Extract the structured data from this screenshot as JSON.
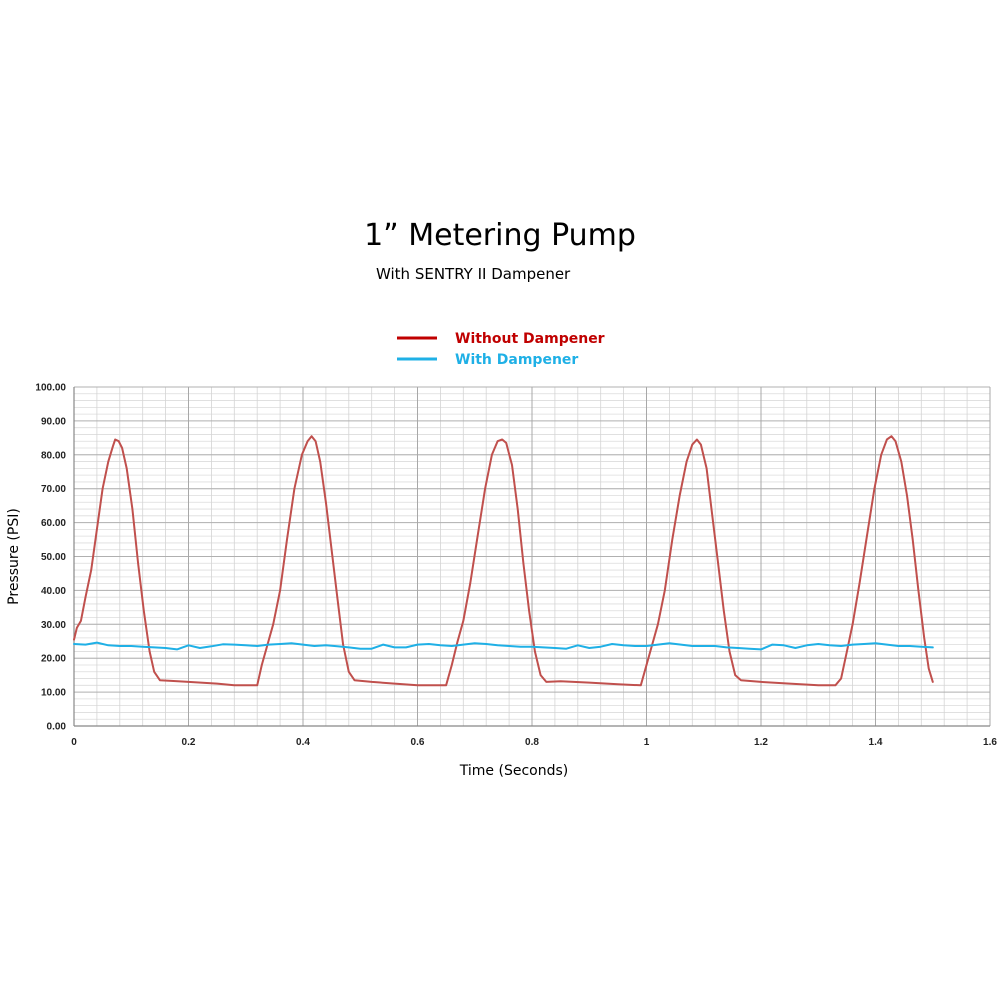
{
  "chart_data": {
    "type": "line",
    "title": "1” Metering Pump",
    "subtitle": "With SENTRY II Dampener",
    "xlabel": "Time (Seconds)",
    "ylabel": "Pressure (PSI)",
    "xlim": [
      0,
      1.6
    ],
    "ylim": [
      0,
      100
    ],
    "x_ticks": [
      "0",
      "0.2",
      "0.4",
      "0.6",
      "0.8",
      "1",
      "1.2",
      "1.4",
      "1.6"
    ],
    "y_ticks": [
      "0.00",
      "10.00",
      "20.00",
      "30.00",
      "40.00",
      "50.00",
      "60.00",
      "70.00",
      "80.00",
      "90.00",
      "100.00"
    ],
    "grid": true,
    "legend_position": "top-center",
    "series": [
      {
        "name": "Without Dampener",
        "color": "#c0504d",
        "legend_color": "#c00000",
        "points": [
          [
            0.0,
            25.5
          ],
          [
            0.005,
            29.0
          ],
          [
            0.012,
            31.0
          ],
          [
            0.02,
            38.0
          ],
          [
            0.03,
            46.0
          ],
          [
            0.04,
            58.0
          ],
          [
            0.05,
            70.0
          ],
          [
            0.06,
            78.0
          ],
          [
            0.068,
            82.5
          ],
          [
            0.072,
            84.5
          ],
          [
            0.078,
            84.0
          ],
          [
            0.084,
            82.0
          ],
          [
            0.092,
            76.0
          ],
          [
            0.102,
            64.0
          ],
          [
            0.112,
            48.0
          ],
          [
            0.122,
            34.0
          ],
          [
            0.132,
            22.0
          ],
          [
            0.14,
            16.0
          ],
          [
            0.15,
            13.5
          ],
          [
            0.17,
            13.3
          ],
          [
            0.2,
            13.0
          ],
          [
            0.25,
            12.5
          ],
          [
            0.28,
            12.0
          ],
          [
            0.32,
            12.0
          ],
          [
            0.328,
            18.0
          ],
          [
            0.338,
            24.0
          ],
          [
            0.348,
            30.0
          ],
          [
            0.36,
            40.0
          ],
          [
            0.372,
            55.0
          ],
          [
            0.385,
            70.0
          ],
          [
            0.398,
            80.0
          ],
          [
            0.408,
            84.0
          ],
          [
            0.415,
            85.5
          ],
          [
            0.422,
            84.0
          ],
          [
            0.43,
            78.0
          ],
          [
            0.44,
            66.0
          ],
          [
            0.45,
            52.0
          ],
          [
            0.46,
            38.0
          ],
          [
            0.47,
            24.0
          ],
          [
            0.48,
            16.0
          ],
          [
            0.49,
            13.5
          ],
          [
            0.52,
            13.0
          ],
          [
            0.56,
            12.5
          ],
          [
            0.6,
            12.0
          ],
          [
            0.65,
            12.0
          ],
          [
            0.66,
            18.0
          ],
          [
            0.67,
            25.0
          ],
          [
            0.68,
            31.0
          ],
          [
            0.692,
            42.0
          ],
          [
            0.705,
            56.0
          ],
          [
            0.718,
            70.0
          ],
          [
            0.73,
            80.0
          ],
          [
            0.74,
            84.0
          ],
          [
            0.748,
            84.5
          ],
          [
            0.755,
            83.5
          ],
          [
            0.765,
            77.0
          ],
          [
            0.775,
            64.0
          ],
          [
            0.785,
            48.0
          ],
          [
            0.795,
            34.0
          ],
          [
            0.805,
            22.0
          ],
          [
            0.815,
            15.0
          ],
          [
            0.825,
            13.0
          ],
          [
            0.85,
            13.2
          ],
          [
            0.9,
            12.8
          ],
          [
            0.95,
            12.3
          ],
          [
            0.99,
            12.0
          ],
          [
            1.0,
            18.0
          ],
          [
            1.01,
            24.0
          ],
          [
            1.02,
            30.0
          ],
          [
            1.032,
            40.0
          ],
          [
            1.045,
            55.0
          ],
          [
            1.058,
            68.0
          ],
          [
            1.07,
            78.0
          ],
          [
            1.08,
            83.0
          ],
          [
            1.088,
            84.5
          ],
          [
            1.095,
            83.0
          ],
          [
            1.105,
            76.0
          ],
          [
            1.115,
            62.0
          ],
          [
            1.125,
            48.0
          ],
          [
            1.135,
            34.0
          ],
          [
            1.145,
            22.0
          ],
          [
            1.155,
            15.0
          ],
          [
            1.165,
            13.5
          ],
          [
            1.2,
            13.0
          ],
          [
            1.25,
            12.5
          ],
          [
            1.3,
            12.0
          ],
          [
            1.33,
            12.0
          ],
          [
            1.34,
            14.0
          ],
          [
            1.35,
            22.0
          ],
          [
            1.36,
            30.0
          ],
          [
            1.372,
            42.0
          ],
          [
            1.385,
            56.0
          ],
          [
            1.398,
            70.0
          ],
          [
            1.41,
            80.0
          ],
          [
            1.42,
            84.5
          ],
          [
            1.428,
            85.5
          ],
          [
            1.435,
            84.0
          ],
          [
            1.445,
            78.0
          ],
          [
            1.455,
            68.0
          ],
          [
            1.465,
            55.0
          ],
          [
            1.475,
            40.0
          ],
          [
            1.485,
            26.0
          ],
          [
            1.493,
            17.0
          ],
          [
            1.5,
            13.0
          ]
        ]
      },
      {
        "name": "With Dampener",
        "color": "#1fb0e6",
        "legend_color": "#1fb0e6",
        "points": [
          [
            0.0,
            24.2
          ],
          [
            0.02,
            24.0
          ],
          [
            0.04,
            24.6
          ],
          [
            0.06,
            23.8
          ],
          [
            0.08,
            23.6
          ],
          [
            0.1,
            23.6
          ],
          [
            0.12,
            23.4
          ],
          [
            0.14,
            23.2
          ],
          [
            0.16,
            23.0
          ],
          [
            0.18,
            22.6
          ],
          [
            0.2,
            23.8
          ],
          [
            0.22,
            23.0
          ],
          [
            0.24,
            23.5
          ],
          [
            0.26,
            24.1
          ],
          [
            0.28,
            24.0
          ],
          [
            0.3,
            23.8
          ],
          [
            0.32,
            23.6
          ],
          [
            0.34,
            24.0
          ],
          [
            0.36,
            24.2
          ],
          [
            0.38,
            24.4
          ],
          [
            0.4,
            24.0
          ],
          [
            0.42,
            23.6
          ],
          [
            0.44,
            23.8
          ],
          [
            0.46,
            23.5
          ],
          [
            0.48,
            23.2
          ],
          [
            0.5,
            22.8
          ],
          [
            0.52,
            22.8
          ],
          [
            0.54,
            24.0
          ],
          [
            0.56,
            23.2
          ],
          [
            0.58,
            23.2
          ],
          [
            0.6,
            24.0
          ],
          [
            0.62,
            24.2
          ],
          [
            0.64,
            23.8
          ],
          [
            0.66,
            23.6
          ],
          [
            0.68,
            24.0
          ],
          [
            0.7,
            24.4
          ],
          [
            0.72,
            24.2
          ],
          [
            0.74,
            23.8
          ],
          [
            0.76,
            23.6
          ],
          [
            0.78,
            23.4
          ],
          [
            0.8,
            23.4
          ],
          [
            0.82,
            23.2
          ],
          [
            0.84,
            23.0
          ],
          [
            0.86,
            22.8
          ],
          [
            0.88,
            23.8
          ],
          [
            0.9,
            23.0
          ],
          [
            0.92,
            23.4
          ],
          [
            0.94,
            24.2
          ],
          [
            0.96,
            23.8
          ],
          [
            0.98,
            23.6
          ],
          [
            1.0,
            23.6
          ],
          [
            1.02,
            24.0
          ],
          [
            1.04,
            24.4
          ],
          [
            1.06,
            24.0
          ],
          [
            1.08,
            23.6
          ],
          [
            1.1,
            23.6
          ],
          [
            1.12,
            23.6
          ],
          [
            1.14,
            23.2
          ],
          [
            1.16,
            23.0
          ],
          [
            1.18,
            22.8
          ],
          [
            1.2,
            22.6
          ],
          [
            1.22,
            24.0
          ],
          [
            1.24,
            23.8
          ],
          [
            1.26,
            23.0
          ],
          [
            1.28,
            23.8
          ],
          [
            1.3,
            24.2
          ],
          [
            1.32,
            23.8
          ],
          [
            1.34,
            23.6
          ],
          [
            1.36,
            24.0
          ],
          [
            1.38,
            24.2
          ],
          [
            1.4,
            24.4
          ],
          [
            1.42,
            24.0
          ],
          [
            1.44,
            23.6
          ],
          [
            1.46,
            23.6
          ],
          [
            1.48,
            23.4
          ],
          [
            1.5,
            23.2
          ]
        ]
      }
    ]
  }
}
